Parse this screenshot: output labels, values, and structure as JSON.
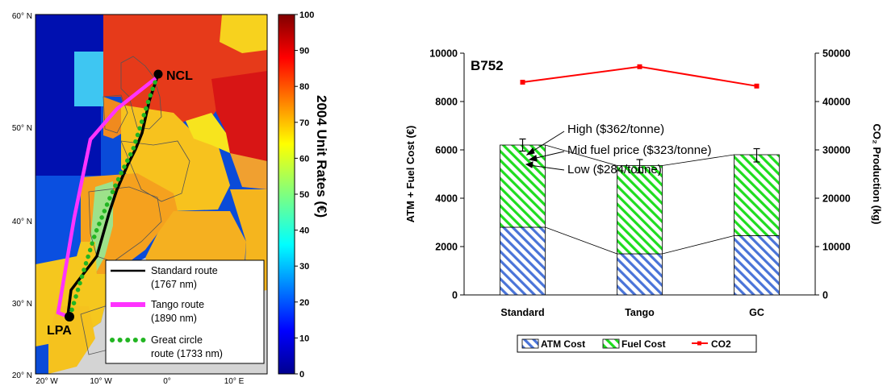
{
  "map": {
    "lat_labels": [
      "60° N",
      "50° N",
      "40° N",
      "30° N",
      "20° N"
    ],
    "lon_labels": [
      "20° W",
      "10° W",
      "0°",
      "10° E"
    ],
    "airports": {
      "origin": "NCL",
      "destination": "LPA"
    },
    "colorbar": {
      "title": "2004 Unit Rates (€)",
      "ticks": [
        "100",
        "90",
        "80",
        "70",
        "60",
        "50",
        "40",
        "30",
        "20",
        "10",
        "0"
      ],
      "range": [
        0,
        100
      ]
    },
    "legend": [
      {
        "label_line1": "Standard route",
        "label_line2": "(1767 nm)",
        "color": "#000000",
        "style": "solid"
      },
      {
        "label_line1": "Tango route",
        "label_line2": "(1890 nm)",
        "color": "#ff33ff",
        "style": "thick"
      },
      {
        "label_line1": "Great circle",
        "label_line2": "route (1733 nm)",
        "color": "#22b522",
        "style": "dotted"
      }
    ]
  },
  "chart_data": {
    "type": "bar",
    "stacked": true,
    "annotation_title": "B752",
    "categories": [
      "Standard",
      "Tango",
      "GC"
    ],
    "series": [
      {
        "name": "ATM Cost",
        "values": [
          2800,
          1700,
          2450
        ],
        "axis": "left",
        "color": "#4472c4",
        "pattern": "diagonal-hatch"
      },
      {
        "name": "Fuel Cost",
        "values": [
          3400,
          3650,
          3350
        ],
        "axis": "left",
        "color": "#22dd22",
        "pattern": "diagonal-hatch"
      },
      {
        "name": "CO2",
        "values": [
          44000,
          47200,
          43200
        ],
        "axis": "right",
        "type": "line",
        "color": "#ff0000"
      }
    ],
    "error_bars": {
      "high": [
        6450,
        5600,
        6050
      ],
      "low": [
        5950,
        5050,
        5500
      ]
    },
    "ylabel": "ATM + Fuel Cost (€)",
    "y2label": "CO₂ Production (kg)",
    "ylim": [
      0,
      10000
    ],
    "y2lim": [
      0,
      50000
    ],
    "yticks": [
      "0",
      "2000",
      "4000",
      "6000",
      "8000",
      "10000"
    ],
    "y2ticks": [
      "0",
      "10000",
      "20000",
      "30000",
      "40000",
      "50000"
    ],
    "annotations": [
      "High ($362/tonne)",
      "Mid fuel price ($323/tonne)",
      "Low ($284/tonne)"
    ],
    "legend_position": "bottom",
    "grid": false
  }
}
